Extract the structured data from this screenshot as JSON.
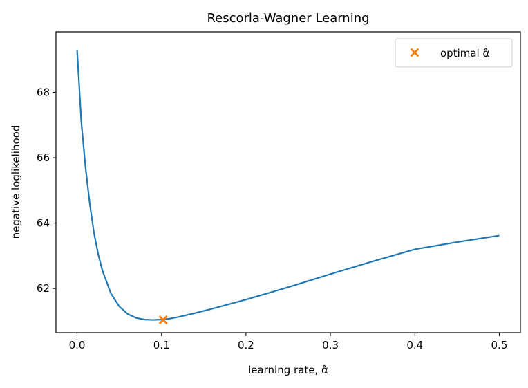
{
  "chart_data": {
    "type": "line",
    "title": "Rescorla-Wagner Learning",
    "xlabel": "learning rate, α̂",
    "ylabel": "negative loglikelihood",
    "xlim": [
      -0.025,
      0.525
    ],
    "ylim": [
      60.65,
      69.85
    ],
    "x_ticks": [
      0.0,
      0.1,
      0.2,
      0.3,
      0.4,
      0.5
    ],
    "x_tick_labels": [
      "0.0",
      "0.1",
      "0.2",
      "0.3",
      "0.4",
      "0.5"
    ],
    "y_ticks": [
      62,
      64,
      66,
      68
    ],
    "y_tick_labels": [
      "62",
      "64",
      "66",
      "68"
    ],
    "grid": false,
    "legend_position": "top-right",
    "series": [
      {
        "color": "#1f77b4",
        "x": [
          0.0,
          0.005,
          0.01,
          0.015,
          0.02,
          0.025,
          0.03,
          0.04,
          0.05,
          0.06,
          0.07,
          0.08,
          0.09,
          0.1,
          0.11,
          0.12,
          0.14,
          0.16,
          0.18,
          0.2,
          0.25,
          0.3,
          0.35,
          0.4,
          0.45,
          0.5
        ],
        "y": [
          69.3,
          67.1,
          65.7,
          64.6,
          63.7,
          63.05,
          62.55,
          61.85,
          61.45,
          61.22,
          61.1,
          61.05,
          61.04,
          61.05,
          61.08,
          61.13,
          61.25,
          61.38,
          61.52,
          61.66,
          62.04,
          62.44,
          62.83,
          63.2,
          63.42,
          63.62
        ]
      },
      {
        "name": "optimal α̂",
        "type": "marker",
        "marker": "X",
        "color": "#ff7f0e",
        "x": [
          0.102
        ],
        "y": [
          61.04
        ]
      }
    ]
  }
}
